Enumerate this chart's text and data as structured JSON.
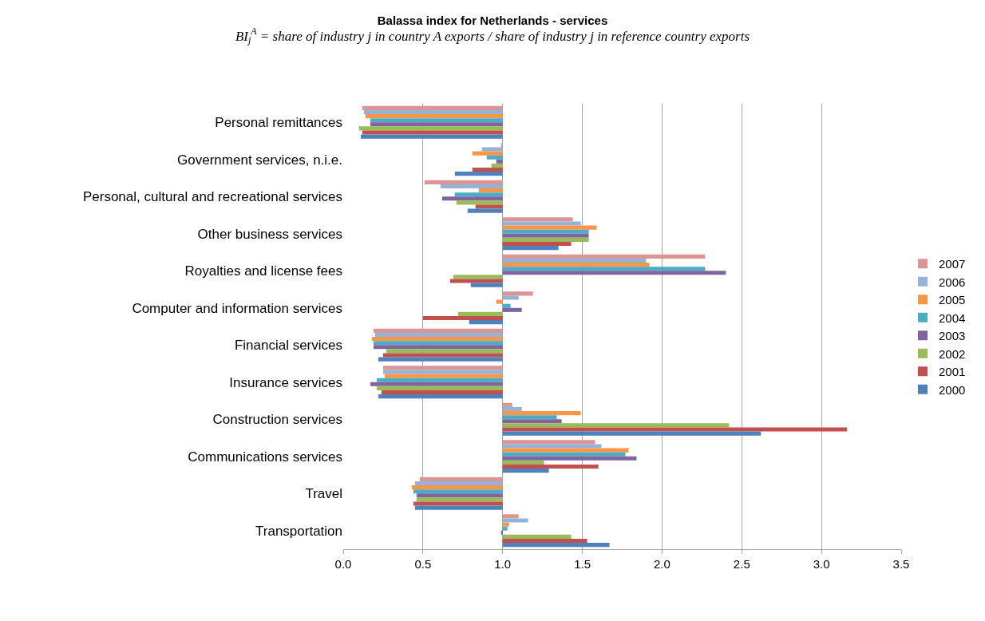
{
  "chart_data": {
    "type": "bar",
    "orientation": "horizontal",
    "title": "Balassa index for Netherlands - services",
    "subtitle": "BI$_{j}$$^{A}$ = share of industry j in country A exports / share of industry j in reference country exports",
    "categories": [
      "Personal remittances",
      "Government services, n.i.e.",
      "Personal, cultural and recreational services",
      "Other business services",
      "Royalties and license fees",
      "Computer and information services",
      "Financial services",
      "Insurance services",
      "Construction services",
      "Communications services",
      "Travel",
      "Transportation"
    ],
    "series": [
      {
        "name": "2000",
        "color": "#4f81bd",
        "base": [
          1,
          1,
          1,
          1,
          1,
          1,
          1,
          1,
          1,
          1,
          1,
          1
        ],
        "values": [
          -0.89,
          -0.3,
          -0.22,
          0.35,
          -0.2,
          -0.21,
          -0.78,
          -0.78,
          1.62,
          0.29,
          -0.55,
          0.67
        ]
      },
      {
        "name": "2001",
        "color": "#c0504d",
        "base": [
          1,
          1,
          1,
          1,
          1,
          1,
          1,
          1,
          1,
          1,
          1,
          1
        ],
        "values": [
          -0.88,
          -0.19,
          -0.17,
          0.43,
          -0.33,
          -0.5,
          -0.75,
          -0.76,
          2.16,
          0.6,
          -0.56,
          0.53
        ]
      },
      {
        "name": "2002",
        "color": "#9bbb59",
        "base": [
          1,
          1,
          1,
          1,
          1,
          1,
          1,
          1,
          1,
          1,
          1,
          1
        ],
        "values": [
          -0.9,
          -0.07,
          -0.29,
          0.54,
          -0.31,
          -0.28,
          -0.73,
          -0.79,
          1.42,
          0.26,
          -0.54,
          0.43
        ]
      },
      {
        "name": "2003",
        "color": "#8064a2",
        "base": [
          1,
          1,
          1,
          1,
          1,
          1,
          1,
          1,
          1,
          1,
          1,
          1
        ],
        "values": [
          -0.83,
          -0.04,
          -0.38,
          0.54,
          1.4,
          0.12,
          -0.81,
          -0.83,
          0.37,
          0.84,
          -0.54,
          -0.01
        ]
      },
      {
        "name": "2004",
        "color": "#4bacc6",
        "base": [
          1,
          1,
          1,
          1,
          1,
          1,
          1,
          1,
          1,
          1,
          1,
          1
        ],
        "values": [
          -0.83,
          -0.1,
          -0.3,
          0.54,
          1.27,
          0.05,
          -0.81,
          -0.79,
          0.34,
          0.77,
          -0.56,
          0.03
        ]
      },
      {
        "name": "2005",
        "color": "#f79646",
        "base": [
          1,
          1,
          1,
          1,
          1,
          1,
          1,
          1,
          1,
          1,
          1,
          1
        ],
        "values": [
          -0.86,
          -0.19,
          -0.15,
          0.59,
          0.92,
          -0.04,
          -0.82,
          -0.74,
          0.49,
          0.79,
          -0.57,
          0.04
        ]
      },
      {
        "name": "2006",
        "color": "#95b3d7",
        "base": [
          1,
          1,
          1,
          1,
          1,
          1,
          1,
          1,
          1,
          1,
          1,
          1
        ],
        "values": [
          -0.87,
          -0.13,
          -0.39,
          0.49,
          0.9,
          0.1,
          -0.8,
          -0.75,
          0.12,
          0.62,
          -0.55,
          0.16
        ]
      },
      {
        "name": "2007",
        "color": "#da9694",
        "base": [
          1,
          1,
          1,
          1,
          1,
          1,
          1,
          1,
          1,
          1,
          1,
          1
        ],
        "values": [
          -0.88,
          -0.01,
          -0.49,
          0.44,
          1.27,
          0.19,
          -0.81,
          -0.75,
          0.06,
          0.58,
          -0.52,
          0.1
        ]
      }
    ],
    "xlim": [
      0,
      3.5
    ],
    "xticks": [
      {
        "value": 0,
        "label": "0.0"
      },
      {
        "value": 0.5,
        "label": "0.5"
      },
      {
        "value": 1,
        "label": "1.0"
      },
      {
        "value": 1.5,
        "label": "1.5"
      },
      {
        "value": 2,
        "label": "2.0"
      },
      {
        "value": 2.5,
        "label": "2.5"
      },
      {
        "value": 3,
        "label": "3.0"
      },
      {
        "value": 3.5,
        "label": "3.5"
      }
    ],
    "grid": "x",
    "legend": "right"
  }
}
